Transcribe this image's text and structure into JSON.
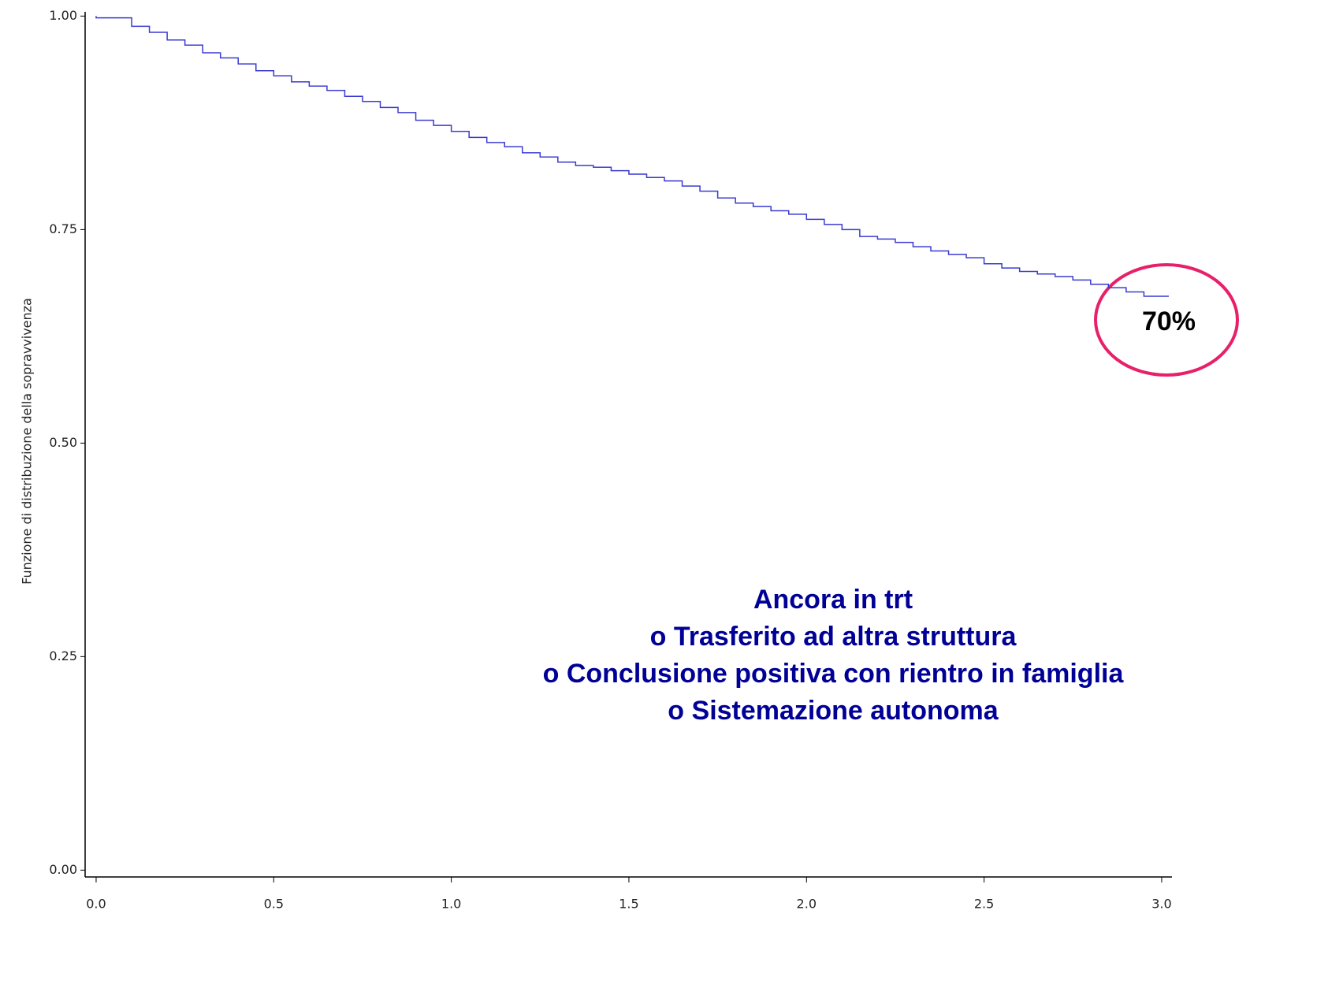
{
  "chart_data": {
    "type": "step",
    "y_label": "Funzione di distribuzione della sopravvivenza",
    "callout": "70%",
    "note_lines": [
      "Ancora in trt",
      "o Trasferito ad altra struttura",
      "o Conclusione positiva con rientro in famiglia",
      "o Sistemazione autonoma"
    ],
    "color": "#3a3ad2",
    "x": [
      0,
      0.05,
      0.1,
      0.15,
      0.2,
      0.25,
      0.3,
      0.35,
      0.4,
      0.45,
      0.5,
      0.55,
      0.6,
      0.65,
      0.7,
      0.75,
      0.8,
      0.85,
      0.9,
      0.95,
      1.0,
      1.05,
      1.1,
      1.15,
      1.2,
      1.25,
      1.3,
      1.35,
      1.4,
      1.45,
      1.5,
      1.55,
      1.6,
      1.65,
      1.7,
      1.75,
      1.8,
      1.85,
      1.9,
      1.95,
      2.0,
      2.05,
      2.1,
      2.15,
      2.2,
      2.25,
      2.3,
      2.35,
      2.4,
      2.45,
      2.5,
      2.55,
      2.6,
      2.65,
      2.7,
      2.75,
      2.8,
      2.85,
      2.9,
      2.95,
      3.0,
      3.02
    ],
    "values": [
      1.0,
      0.998,
      0.998,
      0.988,
      0.981,
      0.972,
      0.966,
      0.957,
      0.951,
      0.944,
      0.936,
      0.93,
      0.923,
      0.918,
      0.913,
      0.906,
      0.9,
      0.893,
      0.887,
      0.878,
      0.872,
      0.865,
      0.858,
      0.852,
      0.847,
      0.84,
      0.835,
      0.829,
      0.825,
      0.823,
      0.819,
      0.815,
      0.811,
      0.807,
      0.801,
      0.795,
      0.787,
      0.781,
      0.777,
      0.772,
      0.768,
      0.762,
      0.756,
      0.75,
      0.742,
      0.739,
      0.735,
      0.73,
      0.725,
      0.721,
      0.717,
      0.71,
      0.705,
      0.701,
      0.698,
      0.695,
      0.691,
      0.686,
      0.682,
      0.677,
      0.672,
      0.672
    ],
    "xlim": [
      -0.031,
      3.029
    ],
    "ylim": [
      -0.008,
      1.005
    ],
    "xticks": [
      {
        "value": 0,
        "label": "0.0"
      },
      0.5,
      {
        "value": 1,
        "label": "1.0"
      },
      1.5,
      {
        "value": 2,
        "label": "2.0"
      },
      2.5,
      {
        "value": 3,
        "label": "3.0"
      }
    ],
    "yticks": [
      {
        "value": 0,
        "label": "0.00"
      },
      0.25,
      {
        "value": 0.5,
        "label": "0.50"
      },
      0.75,
      {
        "value": 1,
        "label": "1.00"
      }
    ]
  }
}
